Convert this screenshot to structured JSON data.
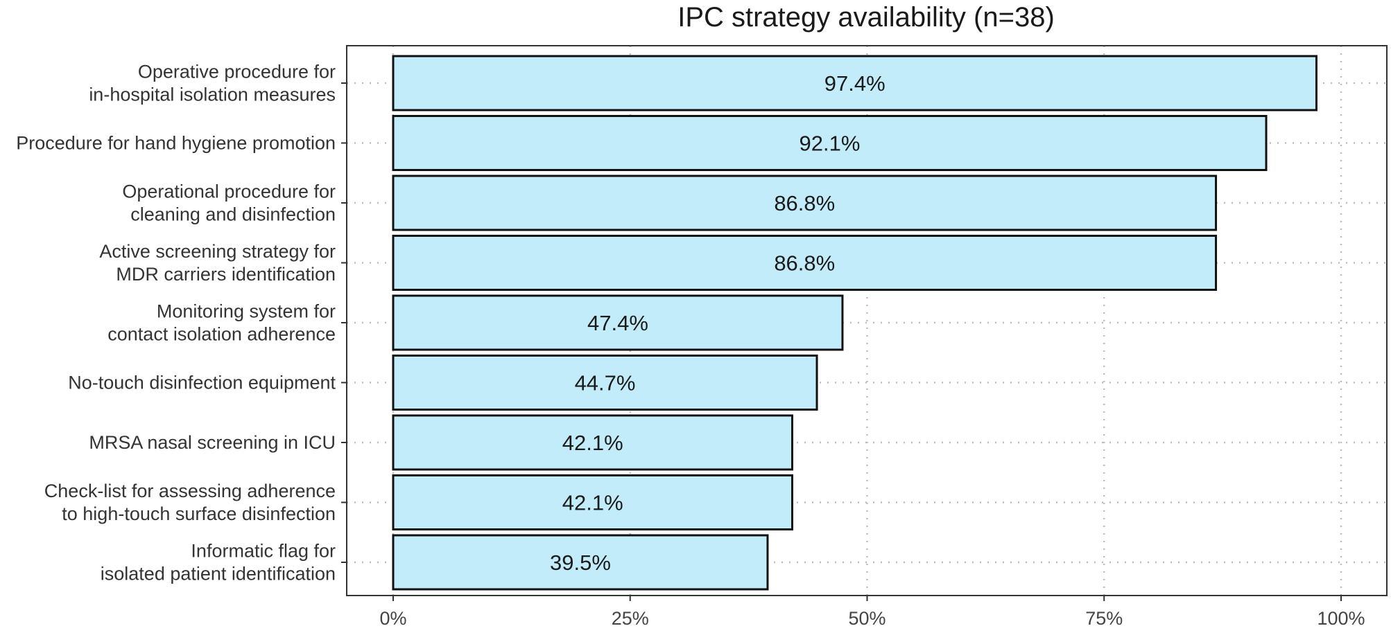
{
  "chart_data": {
    "type": "bar",
    "orientation": "horizontal",
    "title": "IPC strategy availability (n=38)",
    "xlabel": "",
    "ylabel": "",
    "xlim": [
      0,
      100
    ],
    "x_ticks": [
      {
        "value": 0,
        "label": "0%"
      },
      {
        "value": 25,
        "label": "25%"
      },
      {
        "value": 50,
        "label": "50%"
      },
      {
        "value": 75,
        "label": "75%"
      },
      {
        "value": 100,
        "label": "100%"
      }
    ],
    "grid": true,
    "legend": "none",
    "bar_color": "#c3ecfa",
    "bar_edge_color": "#111111",
    "categories": [
      [
        "Operative procedure for",
        "in-hospital isolation measures"
      ],
      [
        "Procedure for hand hygiene promotion"
      ],
      [
        "Operational procedure for",
        "cleaning and disinfection"
      ],
      [
        "Active screening strategy for",
        "MDR carriers identification"
      ],
      [
        "Monitoring system for",
        "contact isolation adherence"
      ],
      [
        "No-touch disinfection equipment"
      ],
      [
        "MRSA nasal screening in ICU"
      ],
      [
        "Check-list for assessing adherence",
        "to high-touch surface disinfection"
      ],
      [
        "Informatic flag for",
        "isolated patient identification"
      ]
    ],
    "values": [
      97.4,
      92.1,
      86.8,
      86.8,
      47.4,
      44.7,
      42.1,
      42.1,
      39.5
    ],
    "data_labels": [
      "97.4%",
      "92.1%",
      "86.8%",
      "86.8%",
      "47.4%",
      "44.7%",
      "42.1%",
      "42.1%",
      "39.5%"
    ]
  }
}
